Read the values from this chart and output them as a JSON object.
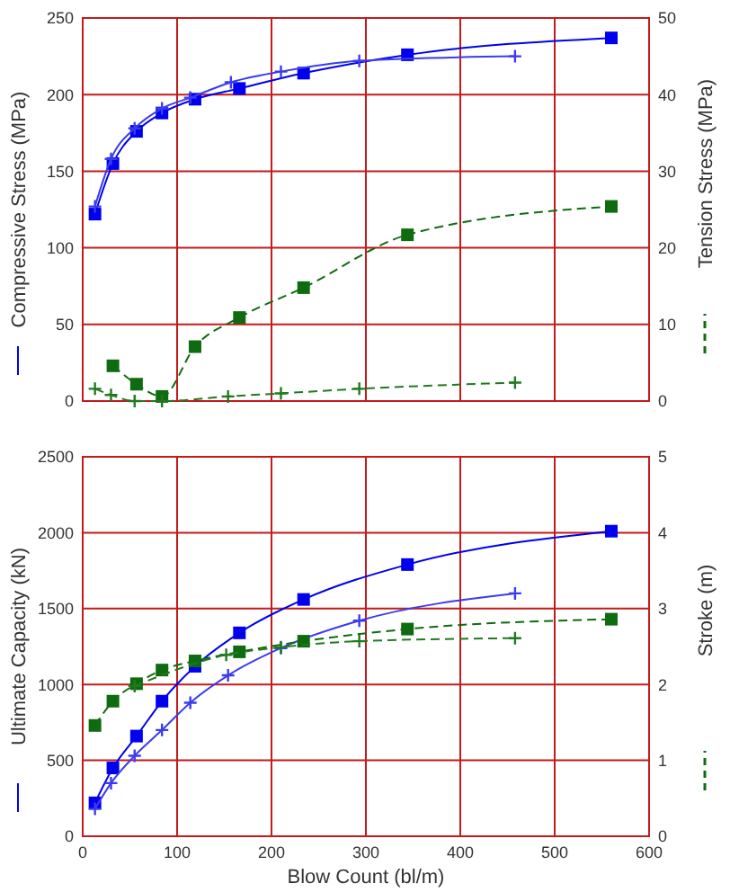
{
  "chart_data": [
    {
      "type": "line",
      "ylabel": "Compressive Stress (MPa)",
      "y2label": "Tension Stress (MPa)",
      "xlim": [
        0,
        600
      ],
      "xticks": [
        0,
        100,
        200,
        300,
        400,
        500,
        600
      ],
      "ylim": [
        0,
        250
      ],
      "yticks": [
        0,
        50,
        100,
        150,
        200,
        250
      ],
      "y2lim": [
        0,
        50
      ],
      "y2ticks": [
        0,
        10,
        20,
        30,
        40,
        50
      ],
      "grid": true,
      "tick_labels": "y",
      "series": [
        {
          "color": "#0000ee",
          "marker": "square",
          "line_style": "solid",
          "x": [
            13,
            32,
            57,
            84,
            119,
            166,
            234,
            344,
            560
          ],
          "values": [
            122,
            155,
            176,
            188,
            197,
            204,
            214,
            226,
            237
          ]
        },
        {
          "color": "#3b3bf0",
          "marker": "cross",
          "line_style": "solid",
          "x": [
            13,
            30,
            55,
            84,
            114,
            157,
            210,
            293,
            458
          ],
          "values": [
            127,
            158,
            178,
            191,
            198,
            208,
            215,
            222,
            225
          ]
        },
        {
          "color": "#0f6b0f",
          "marker": "square",
          "line_style": "dashed",
          "axis": "y2",
          "x": [
            32,
            57,
            84,
            119,
            166,
            234,
            344,
            560
          ],
          "values": [
            4.6,
            2.2,
            0.6,
            7.1,
            10.9,
            14.8,
            21.7,
            25.4
          ]
        },
        {
          "color": "#1f7a1f",
          "marker": "cross",
          "line_style": "dashed",
          "axis": "y2",
          "x": [
            13,
            30,
            55,
            84,
            154,
            210,
            293,
            458
          ],
          "values": [
            1.6,
            0.8,
            0,
            0,
            0.6,
            1.0,
            1.6,
            2.4
          ]
        }
      ]
    },
    {
      "type": "line",
      "xlabel": "Blow Count (bl/m)",
      "ylabel": "Ultimate Capacity (kN)",
      "y2label": "Stroke (m)",
      "xlim": [
        0,
        600
      ],
      "xticks": [
        0,
        100,
        200,
        300,
        400,
        500,
        600
      ],
      "ylim": [
        0,
        2500
      ],
      "yticks": [
        0,
        500,
        1000,
        1500,
        2000,
        2500
      ],
      "y2lim": [
        0,
        5
      ],
      "y2ticks": [
        0,
        1,
        2,
        3,
        4,
        5
      ],
      "grid": true,
      "series": [
        {
          "color": "#0000ee",
          "marker": "square",
          "line_style": "solid",
          "x": [
            13,
            32,
            57,
            84,
            119,
            166,
            234,
            344,
            560
          ],
          "values": [
            220,
            450,
            660,
            890,
            1120,
            1340,
            1560,
            1790,
            2010
          ]
        },
        {
          "color": "#3b3bf0",
          "marker": "cross",
          "line_style": "solid",
          "x": [
            13,
            30,
            55,
            84,
            114,
            154,
            210,
            293,
            458
          ],
          "values": [
            180,
            350,
            530,
            700,
            880,
            1060,
            1240,
            1420,
            1600
          ]
        },
        {
          "color": "#0f6b0f",
          "marker": "square",
          "line_style": "dashed",
          "axis": "y2",
          "x": [
            13,
            32,
            57,
            84,
            119,
            166,
            234,
            344,
            560
          ],
          "values": [
            1.46,
            1.78,
            2.01,
            2.19,
            2.31,
            2.43,
            2.57,
            2.73,
            2.86
          ]
        },
        {
          "color": "#1f7a1f",
          "marker": "cross",
          "line_style": "dashed",
          "axis": "y2",
          "x": [
            55,
            152,
            210,
            293,
            458
          ],
          "values": [
            1.98,
            2.39,
            2.49,
            2.57,
            2.61
          ]
        }
      ]
    }
  ]
}
